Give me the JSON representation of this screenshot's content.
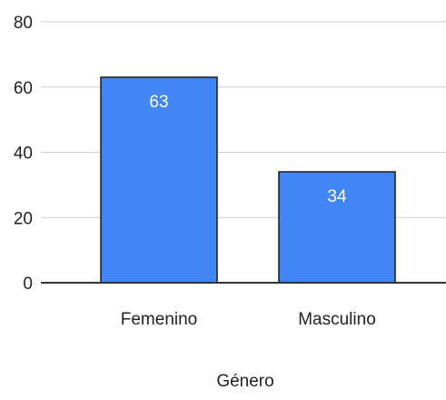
{
  "chart_data": {
    "type": "bar",
    "title": "",
    "xlabel": "Género",
    "ylabel": "",
    "categories": [
      "Femenino",
      "Masculino"
    ],
    "values": [
      63,
      34
    ],
    "data_labels": [
      "63",
      "34"
    ],
    "ylim": [
      0,
      80
    ],
    "yticks": [
      0,
      20,
      40,
      60,
      80
    ],
    "ytick_labels": [
      "0",
      "20",
      "40",
      "60",
      "80"
    ],
    "grid": true,
    "legend": "none",
    "colors": {
      "bar": "#4285f4",
      "bar_outline": "#1a1a1a",
      "grid": "#cccccc",
      "baseline": "#333333",
      "data_label": "#ffffff"
    }
  }
}
